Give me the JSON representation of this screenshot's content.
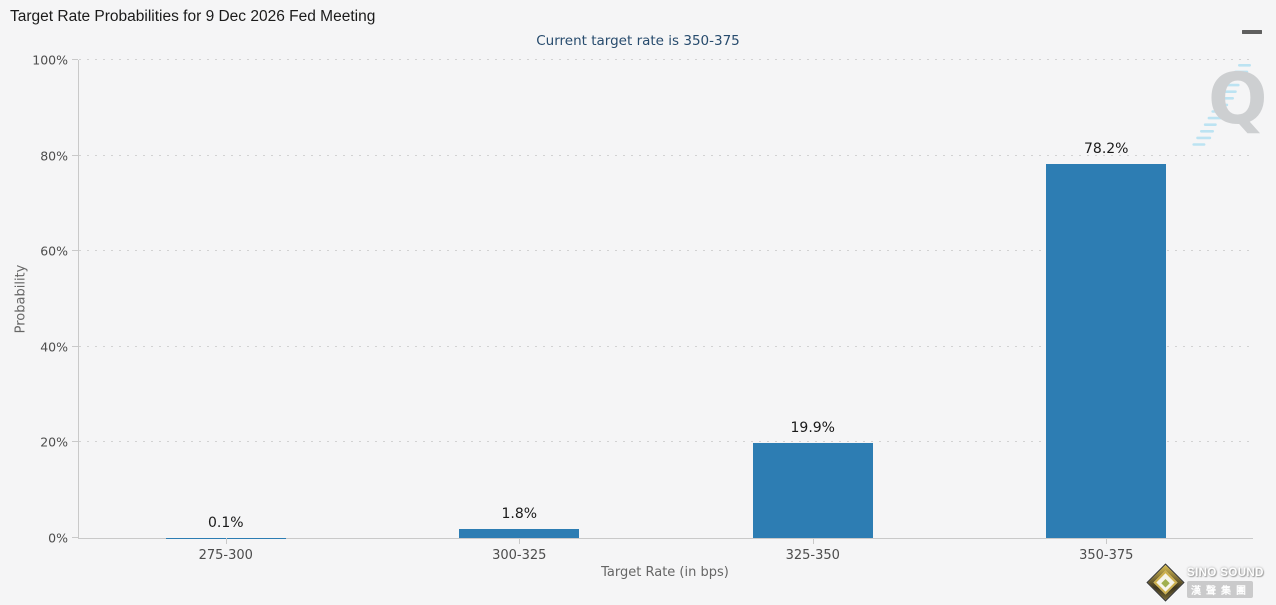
{
  "header": {
    "title": "Target Rate Probabilities for 9 Dec 2026 Fed Meeting"
  },
  "chart_data": {
    "type": "bar",
    "title": "Target Rate Probabilities for 9 Dec 2026 Fed Meeting",
    "subtitle": "Current target rate is 350-375",
    "categories": [
      "275-300",
      "300-325",
      "325-350",
      "350-375"
    ],
    "values": [
      0.1,
      1.8,
      19.9,
      78.2
    ],
    "value_labels": [
      "0.1%",
      "1.8%",
      "19.9%",
      "78.2%"
    ],
    "xlabel": "Target Rate (in bps)",
    "ylabel": "Probability",
    "ylim": [
      0,
      100
    ],
    "yticks": [
      0,
      20,
      40,
      60,
      80,
      100
    ],
    "ytick_labels": [
      "0%",
      "20%",
      "40%",
      "60%",
      "80%",
      "100%"
    ],
    "legend": "none",
    "grid": "horizontal-dotted",
    "bar_color": "#2d7db3"
  },
  "watermarks": {
    "chart_lib_letter": "Q",
    "site_brand": "SINO SOUND",
    "site_brand_cn": "漢聲集團"
  }
}
